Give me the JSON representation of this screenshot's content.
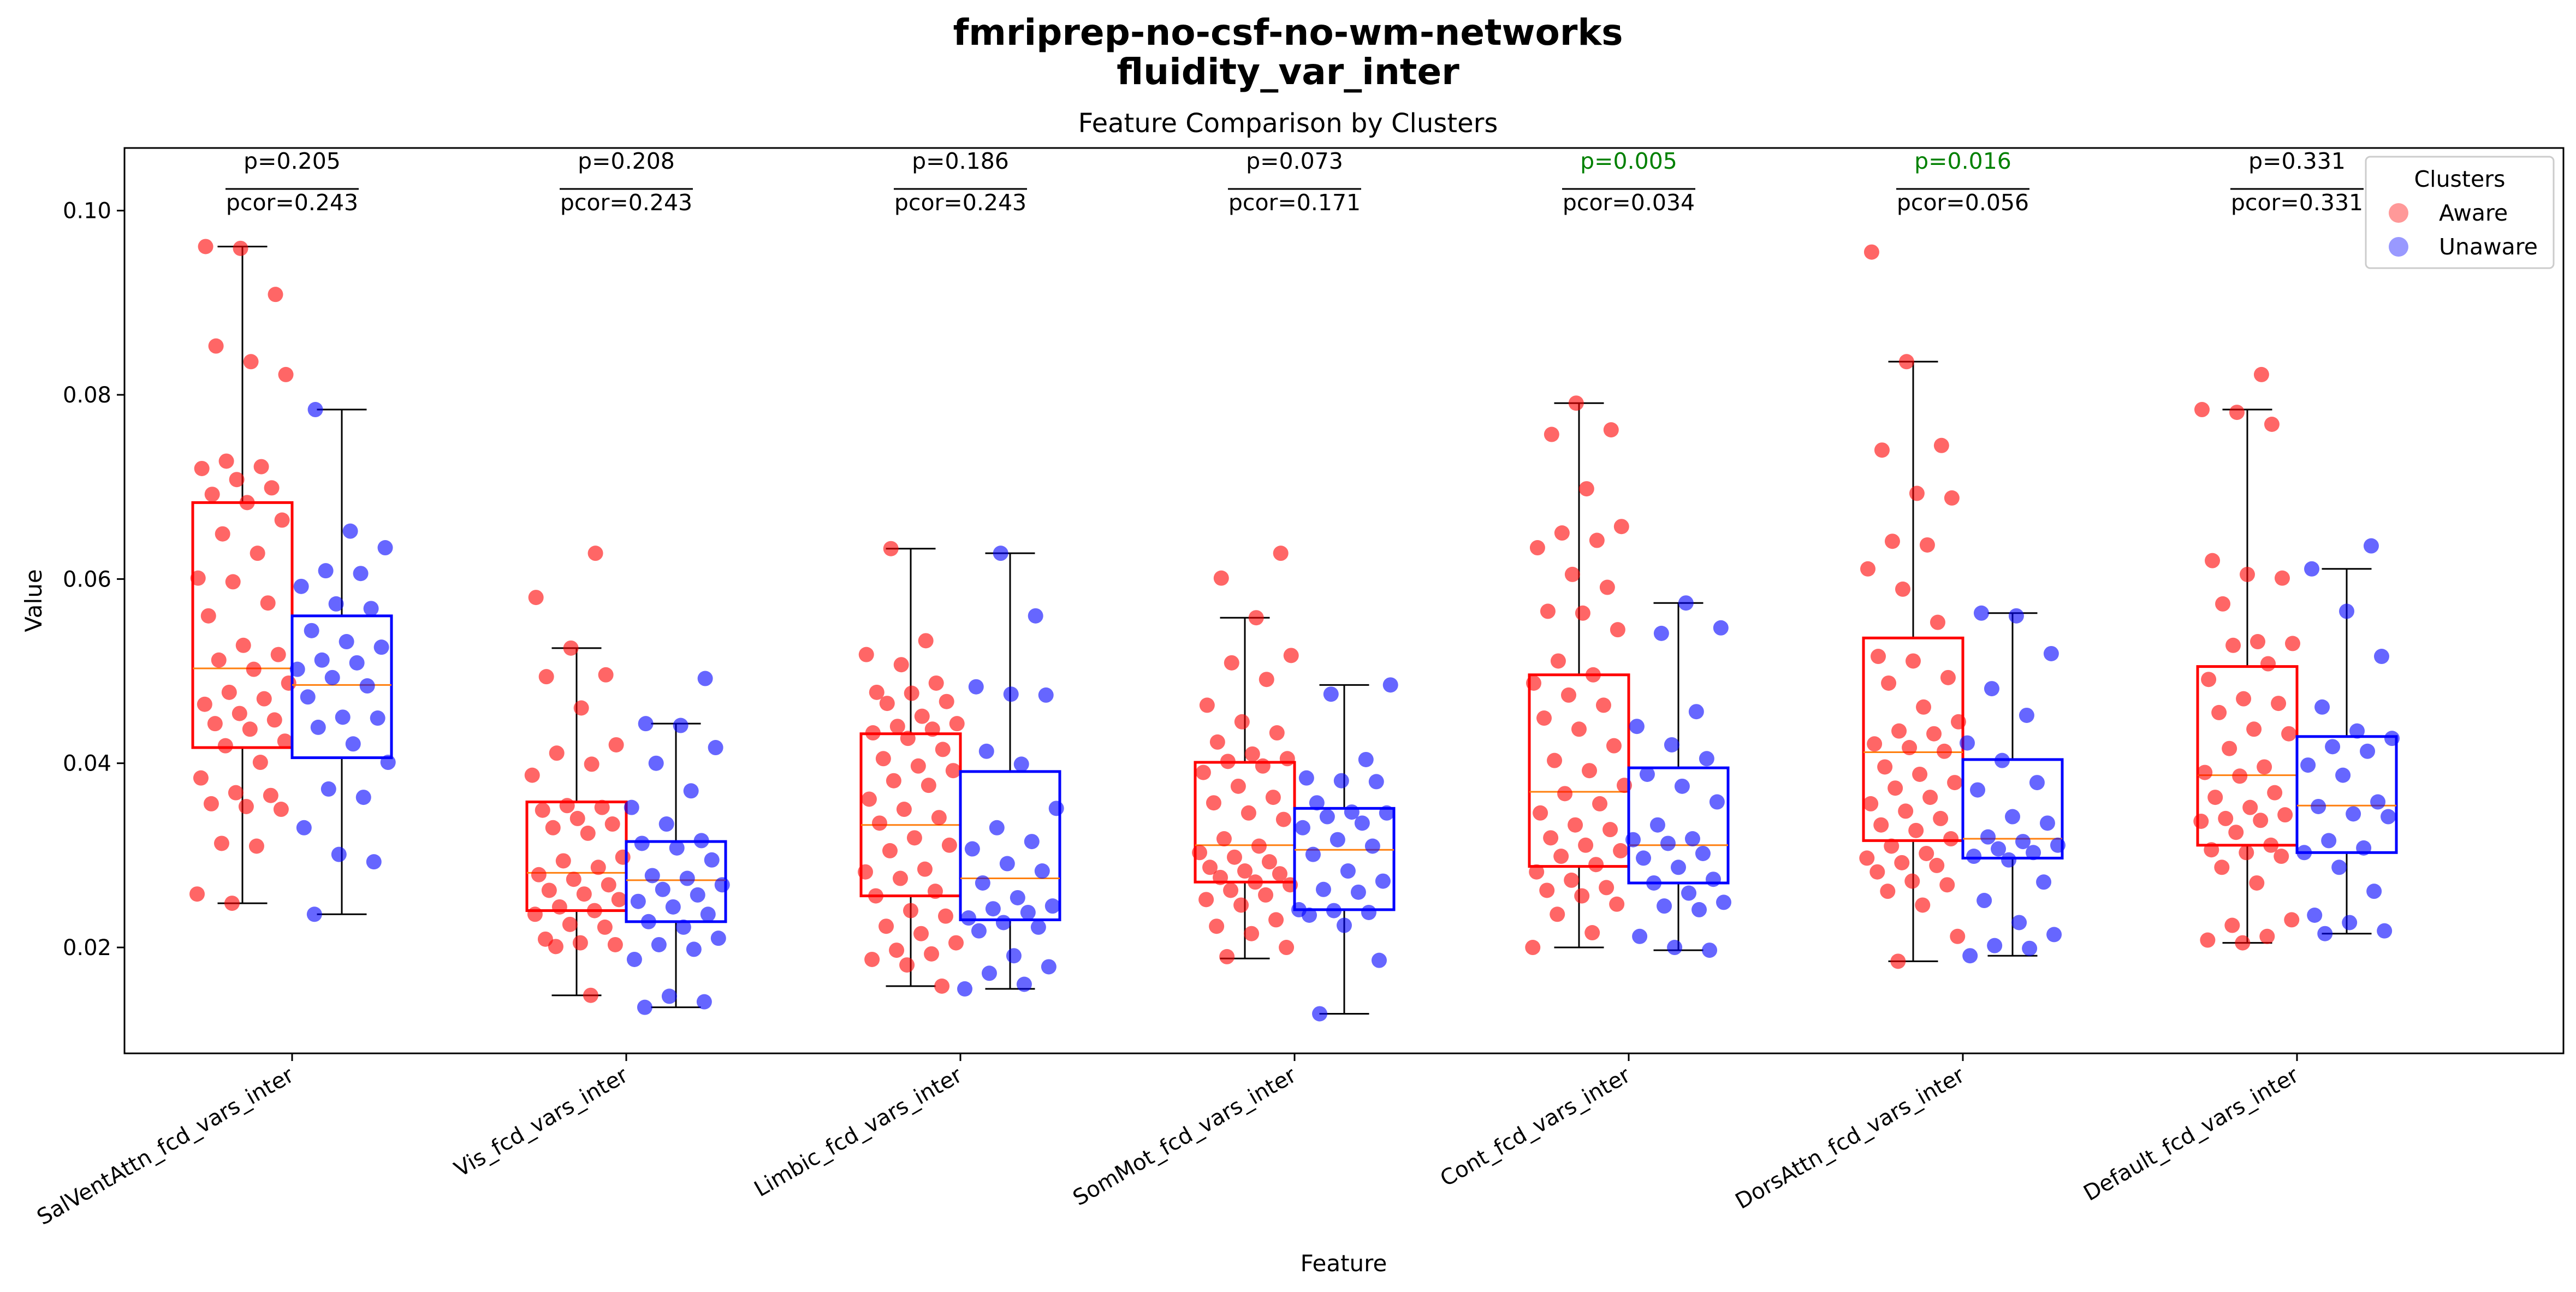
{
  "chart_data": {
    "type": "box",
    "suptitle_line1": "fmriprep-no-csf-no-wm-networks",
    "suptitle_line2": "fluidity_var_inter",
    "title": "Feature Comparison by Clusters",
    "xlabel": "Feature",
    "ylabel": "Value",
    "ylim": [
      0.0085,
      0.1068
    ],
    "yticks": [
      0.02,
      0.04,
      0.06,
      0.08,
      0.1
    ],
    "ytick_labels": [
      "0.02",
      "0.04",
      "0.06",
      "0.08",
      "0.10"
    ],
    "legend": {
      "title": "Clusters",
      "placement": "top-right"
    },
    "colors": {
      "Aware": "#ff0000",
      "Unaware": "#0000ff",
      "median": "#ff7f0e",
      "significant": "#008000"
    },
    "categories": [
      "SalVentAttn_fcd_vars_inter",
      "Vis_fcd_vars_inter",
      "Limbic_fcd_vars_inter",
      "SomMot_fcd_vars_inter",
      "Cont_fcd_vars_inter",
      "DorsAttn_fcd_vars_inter",
      "Default_fcd_vars_inter"
    ],
    "annotations": [
      {
        "p": "p=0.205",
        "pcor": "pcor=0.243",
        "significant": false
      },
      {
        "p": "p=0.208",
        "pcor": "pcor=0.243",
        "significant": false
      },
      {
        "p": "p=0.186",
        "pcor": "pcor=0.243",
        "significant": false
      },
      {
        "p": "p=0.073",
        "pcor": "pcor=0.171",
        "significant": false
      },
      {
        "p": "p=0.005",
        "pcor": "pcor=0.034",
        "significant": true
      },
      {
        "p": "p=0.016",
        "pcor": "pcor=0.056",
        "significant": true
      },
      {
        "p": "p=0.331",
        "pcor": "pcor=0.331",
        "significant": false
      }
    ],
    "series": [
      {
        "name": "Aware",
        "boxes": [
          {
            "whislo": 0.0248,
            "q1": 0.0417,
            "med": 0.0503,
            "q3": 0.0683,
            "whishi": 0.0961
          },
          {
            "whislo": 0.0148,
            "q1": 0.024,
            "med": 0.0281,
            "q3": 0.0358,
            "whishi": 0.0525
          },
          {
            "whislo": 0.0158,
            "q1": 0.0256,
            "med": 0.0333,
            "q3": 0.0432,
            "whishi": 0.0633
          },
          {
            "whislo": 0.0188,
            "q1": 0.0271,
            "med": 0.0311,
            "q3": 0.0401,
            "whishi": 0.0558
          },
          {
            "whislo": 0.02,
            "q1": 0.0288,
            "med": 0.0369,
            "q3": 0.0496,
            "whishi": 0.0791
          },
          {
            "whislo": 0.0185,
            "q1": 0.0316,
            "med": 0.0412,
            "q3": 0.0536,
            "whishi": 0.0836
          },
          {
            "whislo": 0.0205,
            "q1": 0.0311,
            "med": 0.0387,
            "q3": 0.0505,
            "whishi": 0.0784
          }
        ],
        "points": [
          [
            0.0961,
            0.0959,
            0.0909,
            0.0853,
            0.0836,
            0.0822,
            0.0728,
            0.0722,
            0.072,
            0.0708,
            0.0699,
            0.0692,
            0.0683,
            0.0664,
            0.0649,
            0.0628,
            0.0601,
            0.0597,
            0.0574,
            0.056,
            0.0528,
            0.0518,
            0.0512,
            0.0502,
            0.0487,
            0.0477,
            0.047,
            0.0464,
            0.0454,
            0.0447,
            0.0443,
            0.0437,
            0.0424,
            0.0419,
            0.0401,
            0.0384,
            0.0368,
            0.0365,
            0.0356,
            0.0353,
            0.035,
            0.0313,
            0.031,
            0.0258,
            0.0248
          ],
          [
            0.0628,
            0.058,
            0.0525,
            0.0496,
            0.0494,
            0.046,
            0.042,
            0.0411,
            0.0399,
            0.0387,
            0.0354,
            0.0352,
            0.0349,
            0.034,
            0.0334,
            0.033,
            0.0324,
            0.0298,
            0.0294,
            0.0287,
            0.0279,
            0.0274,
            0.0268,
            0.0262,
            0.0258,
            0.0252,
            0.0244,
            0.024,
            0.0236,
            0.0225,
            0.0222,
            0.0209,
            0.0205,
            0.0203,
            0.0201,
            0.0148
          ],
          [
            0.0633,
            0.0533,
            0.0518,
            0.0507,
            0.0487,
            0.0477,
            0.0476,
            0.0467,
            0.0465,
            0.0451,
            0.0443,
            0.044,
            0.0437,
            0.0433,
            0.0427,
            0.0415,
            0.0405,
            0.0397,
            0.0392,
            0.0381,
            0.0376,
            0.0361,
            0.035,
            0.0341,
            0.0335,
            0.0319,
            0.0311,
            0.0305,
            0.0285,
            0.0282,
            0.0275,
            0.0261,
            0.0256,
            0.024,
            0.0234,
            0.0223,
            0.0215,
            0.0205,
            0.0197,
            0.0193,
            0.0187,
            0.0181,
            0.0158
          ],
          [
            0.0628,
            0.0601,
            0.0558,
            0.0517,
            0.0509,
            0.0491,
            0.0463,
            0.0445,
            0.0433,
            0.0423,
            0.041,
            0.0405,
            0.0402,
            0.0397,
            0.039,
            0.0375,
            0.0363,
            0.0357,
            0.0346,
            0.0339,
            0.0318,
            0.031,
            0.0303,
            0.0298,
            0.0293,
            0.0287,
            0.0283,
            0.028,
            0.0276,
            0.0271,
            0.0268,
            0.0262,
            0.0257,
            0.0252,
            0.0246,
            0.023,
            0.0223,
            0.0215,
            0.02,
            0.019
          ],
          [
            0.0791,
            0.0762,
            0.0757,
            0.0698,
            0.0657,
            0.065,
            0.0642,
            0.0634,
            0.0605,
            0.0591,
            0.0565,
            0.0563,
            0.0545,
            0.0511,
            0.0496,
            0.0487,
            0.0474,
            0.0463,
            0.0449,
            0.0437,
            0.0419,
            0.0403,
            0.0392,
            0.0376,
            0.0367,
            0.0356,
            0.0346,
            0.0333,
            0.0328,
            0.0319,
            0.0311,
            0.0305,
            0.0299,
            0.029,
            0.0282,
            0.0273,
            0.0265,
            0.0262,
            0.0256,
            0.0247,
            0.0236,
            0.0216,
            0.02
          ],
          [
            0.0955,
            0.0836,
            0.0745,
            0.074,
            0.0693,
            0.0688,
            0.0641,
            0.0637,
            0.0611,
            0.0589,
            0.0553,
            0.0516,
            0.0511,
            0.0493,
            0.0487,
            0.0461,
            0.0445,
            0.0435,
            0.0432,
            0.0421,
            0.0417,
            0.0413,
            0.0396,
            0.0388,
            0.0379,
            0.0373,
            0.0363,
            0.0356,
            0.0348,
            0.034,
            0.0333,
            0.0327,
            0.0318,
            0.031,
            0.0302,
            0.0297,
            0.0292,
            0.0289,
            0.0282,
            0.0272,
            0.0268,
            0.0261,
            0.0246,
            0.0212,
            0.0185
          ],
          [
            0.0822,
            0.0784,
            0.0781,
            0.0768,
            0.062,
            0.0605,
            0.0601,
            0.0573,
            0.0532,
            0.053,
            0.0528,
            0.0508,
            0.0491,
            0.047,
            0.0465,
            0.0455,
            0.0437,
            0.0432,
            0.0416,
            0.0396,
            0.039,
            0.0386,
            0.0368,
            0.0363,
            0.0352,
            0.0344,
            0.034,
            0.0338,
            0.0337,
            0.0325,
            0.0311,
            0.0306,
            0.0303,
            0.0299,
            0.0287,
            0.027,
            0.023,
            0.0224,
            0.0212,
            0.0208,
            0.0205
          ]
        ]
      },
      {
        "name": "Unaware",
        "boxes": [
          {
            "whislo": 0.0236,
            "q1": 0.0406,
            "med": 0.0485,
            "q3": 0.056,
            "whishi": 0.0784
          },
          {
            "whislo": 0.0135,
            "q1": 0.0228,
            "med": 0.0273,
            "q3": 0.0315,
            "whishi": 0.0443
          },
          {
            "whislo": 0.0155,
            "q1": 0.023,
            "med": 0.0275,
            "q3": 0.0391,
            "whishi": 0.0628
          },
          {
            "whislo": 0.0128,
            "q1": 0.0241,
            "med": 0.0306,
            "q3": 0.0351,
            "whishi": 0.0485
          },
          {
            "whislo": 0.0197,
            "q1": 0.027,
            "med": 0.0311,
            "q3": 0.0395,
            "whishi": 0.0574
          },
          {
            "whislo": 0.0191,
            "q1": 0.0297,
            "med": 0.0318,
            "q3": 0.0404,
            "whishi": 0.0563
          },
          {
            "whislo": 0.0215,
            "q1": 0.0303,
            "med": 0.0354,
            "q3": 0.0429,
            "whishi": 0.0611
          }
        ],
        "points": [
          [
            0.0784,
            0.0652,
            0.0634,
            0.0609,
            0.0606,
            0.0592,
            0.0573,
            0.0568,
            0.0544,
            0.0532,
            0.0526,
            0.0512,
            0.0509,
            0.0502,
            0.0493,
            0.0484,
            0.0472,
            0.045,
            0.0449,
            0.0439,
            0.0421,
            0.0401,
            0.0372,
            0.0363,
            0.033,
            0.0301,
            0.0293,
            0.0236
          ],
          [
            0.0492,
            0.0443,
            0.0441,
            0.0417,
            0.04,
            0.037,
            0.0352,
            0.0334,
            0.0316,
            0.0313,
            0.0308,
            0.0295,
            0.0278,
            0.0275,
            0.0268,
            0.0263,
            0.0257,
            0.025,
            0.0244,
            0.0236,
            0.0228,
            0.0222,
            0.021,
            0.0203,
            0.0198,
            0.0187,
            0.0147,
            0.0141,
            0.0135
          ],
          [
            0.0628,
            0.056,
            0.0483,
            0.0475,
            0.0474,
            0.0413,
            0.0399,
            0.0351,
            0.033,
            0.0315,
            0.0307,
            0.0291,
            0.0283,
            0.027,
            0.0254,
            0.0245,
            0.0242,
            0.0238,
            0.0232,
            0.0227,
            0.0222,
            0.0218,
            0.0191,
            0.0179,
            0.0172,
            0.016,
            0.0155
          ],
          [
            0.0485,
            0.0475,
            0.0404,
            0.0384,
            0.0381,
            0.038,
            0.0357,
            0.0347,
            0.0346,
            0.0342,
            0.0335,
            0.033,
            0.0317,
            0.031,
            0.0301,
            0.0283,
            0.0272,
            0.0263,
            0.026,
            0.0241,
            0.024,
            0.0238,
            0.0235,
            0.0224,
            0.0186,
            0.0128
          ],
          [
            0.0574,
            0.0547,
            0.0541,
            0.0456,
            0.044,
            0.042,
            0.0405,
            0.0388,
            0.0375,
            0.0358,
            0.0333,
            0.0318,
            0.0317,
            0.0313,
            0.0302,
            0.0297,
            0.0287,
            0.0274,
            0.027,
            0.0259,
            0.0249,
            0.0245,
            0.0241,
            0.0212,
            0.02,
            0.0197
          ],
          [
            0.0563,
            0.056,
            0.0519,
            0.0481,
            0.0452,
            0.0422,
            0.0403,
            0.0379,
            0.0371,
            0.0342,
            0.0335,
            0.032,
            0.0315,
            0.0311,
            0.0307,
            0.0303,
            0.0299,
            0.0295,
            0.0271,
            0.0251,
            0.0227,
            0.0214,
            0.0202,
            0.0199,
            0.0191
          ],
          [
            0.0636,
            0.0611,
            0.0565,
            0.0516,
            0.0461,
            0.0435,
            0.0427,
            0.0418,
            0.0413,
            0.0398,
            0.0387,
            0.0358,
            0.0353,
            0.0345,
            0.0342,
            0.0316,
            0.0308,
            0.0303,
            0.0287,
            0.0261,
            0.0235,
            0.0227,
            0.0218,
            0.0215
          ]
        ]
      }
    ]
  }
}
